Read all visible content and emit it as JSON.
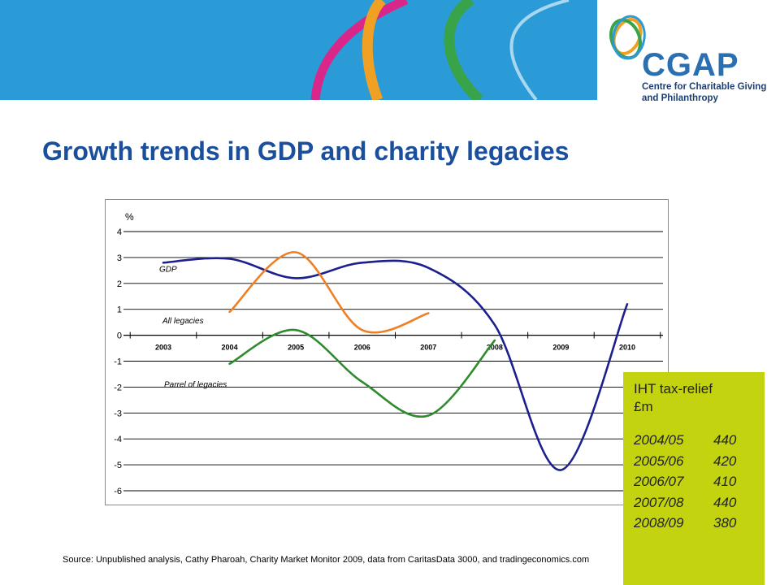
{
  "header": {
    "logo": {
      "name": "CGAP",
      "line1": "Centre for Charitable Giving",
      "line2": "and Philanthropy"
    }
  },
  "slide": {
    "title": "Growth trends in GDP and charity legacies",
    "source": "Source: Unpublished analysis, Cathy Pharoah, Charity Market Monitor 2009, data from CaritasData 3000, and tradingeconomics.com"
  },
  "chart_data": {
    "type": "line",
    "title": "",
    "xlabel": "",
    "ylabel": "%",
    "ylim": [
      -6,
      4
    ],
    "yticks": [
      "4",
      "3",
      "2",
      "1",
      "0",
      "-1",
      "-2",
      "-3",
      "-4",
      "-5",
      "-6"
    ],
    "categories": [
      "2003",
      "2004",
      "2005",
      "2006",
      "2007",
      "2008",
      "2009",
      "2010"
    ],
    "grid": true,
    "series": [
      {
        "name": "GDP",
        "color": "#1c1f8c",
        "x": [
          2003,
          2004,
          2005,
          2006,
          2007,
          2008,
          2009,
          2010
        ],
        "values": [
          2.8,
          2.95,
          2.2,
          2.8,
          2.6,
          0.4,
          -5.2,
          1.2
        ]
      },
      {
        "name": "All legacies",
        "color": "#f07f24",
        "x": [
          2004,
          2005,
          2006,
          2007
        ],
        "values": [
          0.9,
          3.2,
          0.2,
          0.85
        ]
      },
      {
        "name": "Parrel of legacies",
        "color": "#2e8b2e",
        "x": [
          2004,
          2005,
          2006,
          2007,
          2008
        ],
        "values": [
          -1.1,
          0.2,
          -1.8,
          -3.1,
          -0.2
        ]
      }
    ]
  },
  "iht_box": {
    "title_line1": "IHT tax-relief",
    "title_line2": "£m",
    "rows": [
      {
        "year": "2004/05",
        "value": "440"
      },
      {
        "year": "2005/06",
        "value": "420"
      },
      {
        "year": "2006/07",
        "value": "410"
      },
      {
        "year": "2007/08",
        "value": "440"
      },
      {
        "year": "2008/09",
        "value": "380"
      }
    ]
  },
  "colors": {
    "banner_blue": "#2a9bd6",
    "title_blue": "#1b4f9c",
    "iht_box": "#c3d30f",
    "gdp": "#1c1f8c",
    "all_legacies": "#f07f24",
    "parrel_legacies": "#2e8b2e"
  }
}
